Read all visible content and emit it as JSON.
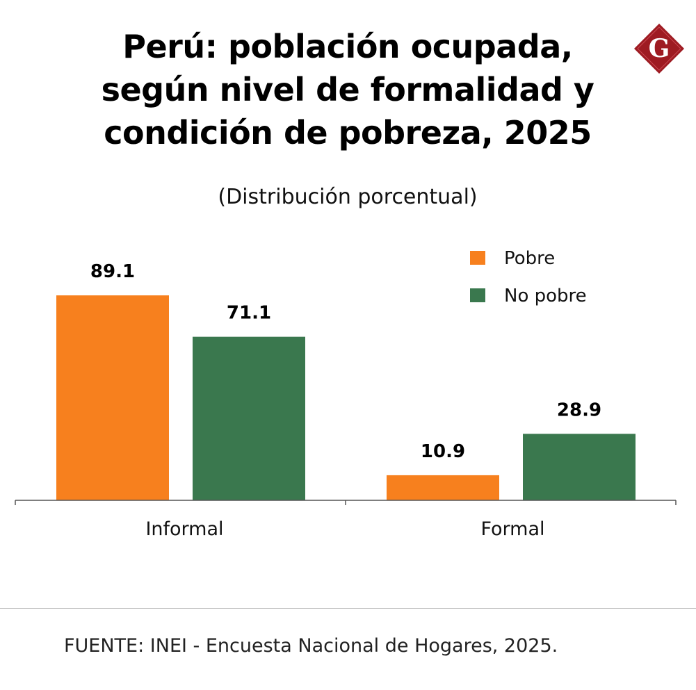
{
  "header": {
    "title_line1": "Perú: población ocupada,",
    "title_line2": "según nivel de formalidad y",
    "title_line3": "condición de pobreza, 2025",
    "subtitle": "(Distribución porcentual)",
    "logo_letter": "G"
  },
  "chart_data": {
    "type": "bar",
    "title": "Perú: población ocupada, según nivel de formalidad y condición de pobreza, 2025",
    "subtitle": "(Distribución porcentual)",
    "categories": [
      "Informal",
      "Formal"
    ],
    "series": [
      {
        "name": "Pobre",
        "values": [
          89.1,
          10.9
        ],
        "color": "#f7801e"
      },
      {
        "name": "No pobre",
        "values": [
          71.1,
          28.9
        ],
        "color": "#3a784e"
      }
    ],
    "ylim": [
      0,
      100
    ],
    "grid": false,
    "legend_position": "top-right",
    "value_labels": true
  },
  "colors": {
    "pobre": "#f7801e",
    "no_pobre": "#3a784e",
    "logo": "#9e1b22"
  },
  "footer": {
    "source": "FUENTE: INEI - Encuesta Nacional de Hogares, 2025."
  }
}
